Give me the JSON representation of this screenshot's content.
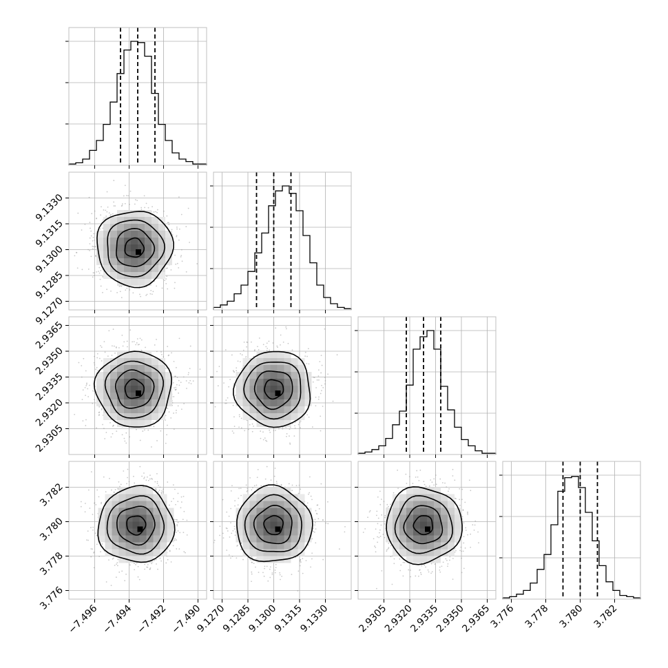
{
  "chart_data": {
    "type": "corner",
    "parameters": [
      {
        "ticks": [
          -7.496,
          -7.494,
          -7.492,
          -7.49
        ],
        "tick_labels": [
          "−7.496",
          "−7.494",
          "−7.492",
          "−7.490"
        ],
        "range": [
          -7.4975,
          -7.4895
        ],
        "quantiles": [
          -7.4945,
          -7.4935,
          -7.4925
        ],
        "hist": [
          0.01,
          0.02,
          0.05,
          0.12,
          0.2,
          0.33,
          0.51,
          0.74,
          0.93,
          1.0,
          0.99,
          0.88,
          0.58,
          0.33,
          0.2,
          0.1,
          0.05,
          0.03,
          0.01,
          0.01
        ]
      },
      {
        "ticks": [
          9.127,
          9.1285,
          9.13,
          9.1315,
          9.133
        ],
        "tick_labels": [
          "9.1270",
          "9.1285",
          "9.1300",
          "9.1315",
          "9.1330"
        ],
        "range": [
          9.1265,
          9.1345
        ],
        "quantiles": [
          9.129,
          9.13,
          9.131
        ],
        "hist": [
          0.02,
          0.04,
          0.07,
          0.13,
          0.2,
          0.31,
          0.46,
          0.62,
          0.84,
          0.96,
          1.0,
          0.94,
          0.8,
          0.6,
          0.38,
          0.2,
          0.1,
          0.05,
          0.02,
          0.01
        ]
      },
      {
        "ticks": [
          2.9305,
          2.932,
          2.9335,
          2.935,
          2.9365
        ],
        "tick_labels": [
          "2.9305",
          "2.9320",
          "2.9335",
          "2.9350",
          "2.9365"
        ],
        "range": [
          2.929,
          2.937
        ],
        "quantiles": [
          2.9318,
          2.9328,
          2.9338
        ],
        "hist": [
          0.01,
          0.02,
          0.04,
          0.07,
          0.13,
          0.24,
          0.35,
          0.56,
          0.85,
          0.95,
          1.0,
          0.85,
          0.55,
          0.36,
          0.22,
          0.12,
          0.07,
          0.03,
          0.01,
          0.01
        ]
      },
      {
        "ticks": [
          3.776,
          3.778,
          3.78,
          3.782
        ],
        "tick_labels": [
          "3.776",
          "3.778",
          "3.780",
          "3.782"
        ],
        "range": [
          3.7755,
          3.7835
        ],
        "quantiles": [
          3.779,
          3.78,
          3.781
        ],
        "hist": [
          0.01,
          0.02,
          0.04,
          0.07,
          0.13,
          0.24,
          0.36,
          0.6,
          0.87,
          0.98,
          0.99,
          0.9,
          0.7,
          0.47,
          0.27,
          0.14,
          0.07,
          0.03,
          0.02,
          0.01
        ]
      }
    ],
    "pairs": [
      {
        "row": 1,
        "col": 0,
        "center": [
          -7.4937,
          9.1301
        ],
        "sigma": [
          0.0011,
          0.0011
        ]
      },
      {
        "row": 2,
        "col": 0,
        "center": [
          -7.4937,
          2.9328
        ],
        "sigma": [
          0.0011,
          0.0011
        ]
      },
      {
        "row": 2,
        "col": 1,
        "center": [
          9.13,
          2.9328
        ],
        "sigma": [
          0.0011,
          0.0011
        ]
      },
      {
        "row": 3,
        "col": 0,
        "center": [
          -7.4936,
          3.7798
        ],
        "sigma": [
          0.0011,
          0.0011
        ]
      },
      {
        "row": 3,
        "col": 1,
        "center": [
          9.13,
          3.7798
        ],
        "sigma": [
          0.0011,
          0.0011
        ]
      },
      {
        "row": 3,
        "col": 2,
        "center": [
          2.9328,
          3.7798
        ],
        "sigma": [
          0.0011,
          0.0011
        ]
      }
    ],
    "contour_levels_sigma": [
      0.5,
      1.0,
      1.5,
      2.0
    ],
    "grid": true,
    "colors": {
      "line": "#000000",
      "grid": "#b0b0b0",
      "frame": "#bfbfbf",
      "scatter": "#9a9a9a"
    }
  }
}
